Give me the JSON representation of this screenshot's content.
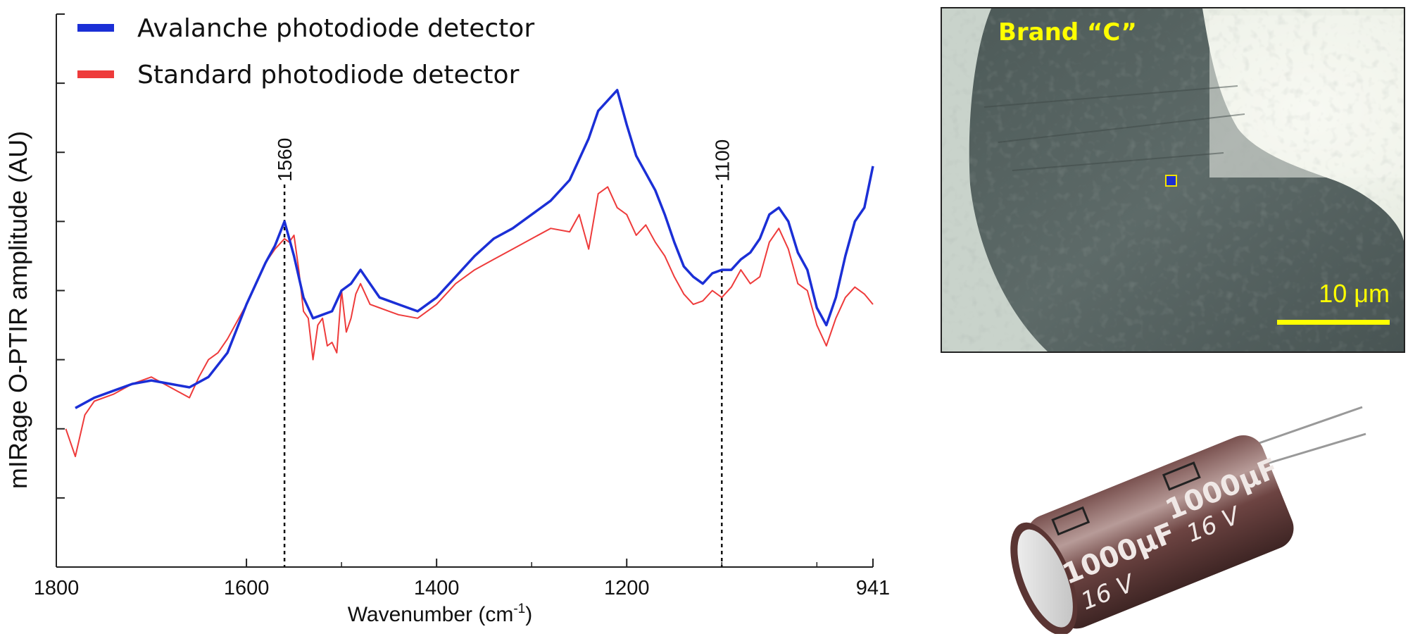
{
  "chart_data": {
    "type": "line",
    "title": "",
    "xlabel": "Wavenumber (cm⁻¹)",
    "xlabel_main": "Wavenumber (cm",
    "xlabel_sup": "-1",
    "xlabel_close": ")",
    "ylabel": "mIRage O-PTIR amplitude (AU)",
    "xlim": [
      1800,
      941
    ],
    "x_reversed": true,
    "ylim": [
      0,
      8
    ],
    "x_ticks": [
      1800,
      1600,
      1400,
      1200,
      941
    ],
    "x_tick_labels": [
      "1800",
      "1600",
      "1400",
      "1200",
      "941"
    ],
    "y_tick_labels_shown": false,
    "grid": false,
    "legend_placement": "top-left",
    "reference_lines": [
      {
        "x": 1560,
        "label": "1560"
      },
      {
        "x": 1100,
        "label": "1100"
      }
    ],
    "series": [
      {
        "name": "Avalanche photodiode detector",
        "color": "#1b2fd6",
        "x": [
          1780,
          1760,
          1740,
          1720,
          1700,
          1680,
          1660,
          1640,
          1620,
          1600,
          1580,
          1570,
          1560,
          1550,
          1540,
          1530,
          1520,
          1510,
          1500,
          1490,
          1480,
          1470,
          1460,
          1450,
          1440,
          1420,
          1400,
          1380,
          1360,
          1340,
          1320,
          1300,
          1280,
          1260,
          1250,
          1240,
          1230,
          1220,
          1210,
          1200,
          1190,
          1180,
          1170,
          1160,
          1150,
          1140,
          1130,
          1120,
          1110,
          1100,
          1090,
          1080,
          1070,
          1060,
          1050,
          1040,
          1030,
          1020,
          1010,
          1000,
          990,
          980,
          970,
          960,
          950,
          941
        ],
        "y": [
          2.3,
          2.45,
          2.55,
          2.65,
          2.7,
          2.65,
          2.6,
          2.75,
          3.1,
          3.8,
          4.4,
          4.65,
          5.0,
          4.5,
          3.9,
          3.6,
          3.65,
          3.7,
          4.0,
          4.1,
          4.3,
          4.1,
          3.9,
          3.85,
          3.8,
          3.7,
          3.9,
          4.2,
          4.5,
          4.75,
          4.9,
          5.1,
          5.3,
          5.6,
          5.9,
          6.2,
          6.6,
          6.75,
          6.9,
          6.4,
          5.95,
          5.7,
          5.45,
          5.1,
          4.7,
          4.35,
          4.2,
          4.1,
          4.25,
          4.3,
          4.3,
          4.45,
          4.55,
          4.75,
          5.1,
          5.2,
          5.0,
          4.55,
          4.3,
          3.75,
          3.5,
          3.9,
          4.5,
          5.0,
          5.2,
          5.8
        ]
      },
      {
        "name": "Standard photodiode detector",
        "color": "#ee3b3b",
        "x": [
          1790,
          1780,
          1770,
          1760,
          1740,
          1720,
          1700,
          1680,
          1660,
          1650,
          1640,
          1630,
          1620,
          1600,
          1580,
          1570,
          1560,
          1555,
          1550,
          1545,
          1540,
          1535,
          1530,
          1525,
          1520,
          1515,
          1510,
          1505,
          1500,
          1495,
          1490,
          1485,
          1480,
          1470,
          1460,
          1450,
          1440,
          1420,
          1400,
          1380,
          1360,
          1340,
          1320,
          1300,
          1280,
          1260,
          1250,
          1240,
          1230,
          1220,
          1210,
          1200,
          1190,
          1180,
          1170,
          1160,
          1150,
          1140,
          1130,
          1120,
          1110,
          1100,
          1090,
          1080,
          1070,
          1060,
          1050,
          1040,
          1030,
          1020,
          1010,
          1000,
          990,
          980,
          970,
          960,
          950,
          941
        ],
        "y": [
          2.0,
          1.6,
          2.2,
          2.4,
          2.5,
          2.65,
          2.75,
          2.6,
          2.45,
          2.75,
          3.0,
          3.1,
          3.3,
          3.8,
          4.4,
          4.6,
          4.75,
          4.7,
          4.8,
          4.3,
          3.7,
          3.6,
          3.0,
          3.5,
          3.6,
          3.2,
          3.25,
          3.1,
          4.0,
          3.4,
          3.6,
          3.95,
          4.1,
          3.8,
          3.75,
          3.7,
          3.65,
          3.6,
          3.8,
          4.1,
          4.3,
          4.45,
          4.6,
          4.75,
          4.9,
          4.85,
          5.1,
          4.6,
          5.4,
          5.5,
          5.2,
          5.1,
          4.8,
          4.95,
          4.7,
          4.5,
          4.2,
          3.95,
          3.8,
          3.85,
          4.0,
          3.9,
          4.05,
          4.3,
          4.1,
          4.2,
          4.7,
          4.9,
          4.6,
          4.1,
          4.0,
          3.5,
          3.2,
          3.6,
          3.9,
          4.05,
          3.95,
          3.8
        ]
      }
    ]
  },
  "micrograph": {
    "brand_label": "Brand “C”",
    "scale_label": "10 μm",
    "scale_color": "#ffff00"
  },
  "capacitor": {
    "value_label": "1000μF",
    "voltage_label": "16 V"
  }
}
